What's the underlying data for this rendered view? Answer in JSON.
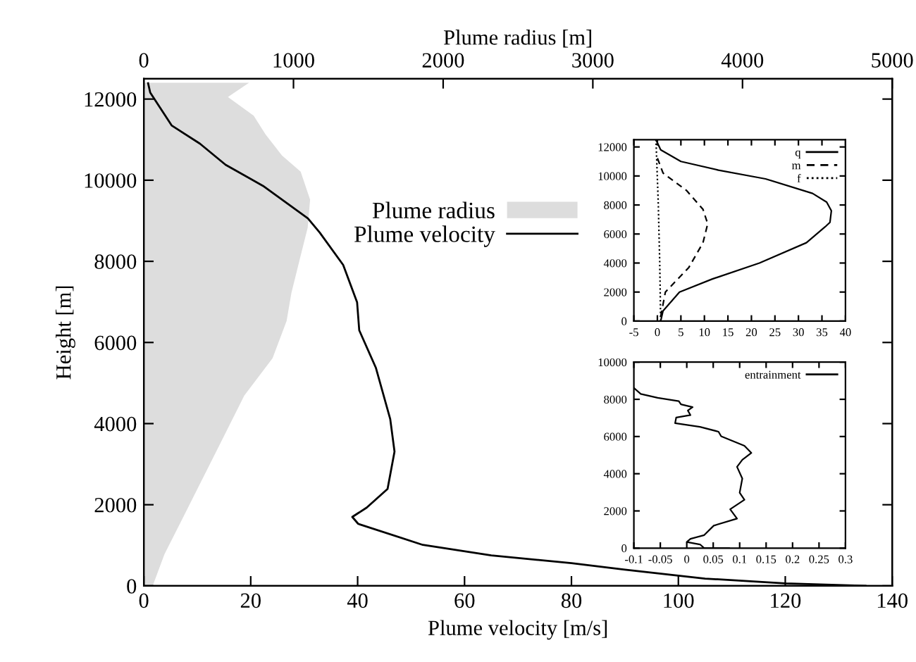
{
  "chart_data": [
    {
      "type": "line",
      "xlabel": "Plume velocity [m/s]",
      "ylabel": "Height [m]",
      "x2label": "Plume radius [m]",
      "xlim": [
        0,
        140
      ],
      "xticks": [
        0,
        20,
        40,
        60,
        80,
        100,
        120,
        140
      ],
      "x2lim": [
        0,
        5000
      ],
      "x2ticks": [
        0,
        1000,
        2000,
        3000,
        4000,
        5000
      ],
      "ylim": [
        0,
        12500
      ],
      "yticks": [
        0,
        2000,
        4000,
        6000,
        8000,
        10000,
        12000
      ],
      "grid": false,
      "legend": "top",
      "series": [
        {
          "name": "Plume radius",
          "type": "area",
          "axis": "x2",
          "color": "#dddddd",
          "x": [
            59,
            138,
            264,
            358,
            515,
            671,
            860,
            954,
            986,
            1048,
            1095,
            1111,
            1048,
            923,
            813,
            734,
            562,
            703,
            0
          ],
          "values": [
            0,
            780,
            1700,
            2390,
            3540,
            4690,
            5610,
            6530,
            7220,
            8140,
            8830,
            9520,
            10210,
            10610,
            11130,
            11590,
            12050,
            12400,
            12400
          ]
        },
        {
          "name": "Plume velocity",
          "type": "line",
          "color": "#000000",
          "x": [
            135,
            120,
            105,
            90,
            80,
            65,
            52.2,
            40.1,
            39.0,
            41.7,
            45.6,
            46.9,
            46.1,
            43.4,
            40.3,
            39.9,
            37.3,
            32.9,
            30.7,
            22.3,
            15.3,
            10.5,
            5.2,
            1.2,
            0.8
          ],
          "values": [
            0,
            60,
            180,
            400,
            560,
            750,
            1010,
            1530,
            1700,
            1930,
            2390,
            3310,
            4110,
            5380,
            6300,
            6990,
            7910,
            8710,
            9060,
            9860,
            10380,
            10900,
            11350,
            12160,
            12390
          ]
        }
      ]
    },
    {
      "type": "line",
      "xlim": [
        -5,
        40
      ],
      "xticks": [
        -5,
        0,
        5,
        10,
        15,
        20,
        25,
        30,
        35,
        40
      ],
      "ylim": [
        0,
        12500
      ],
      "yticks": [
        0,
        2000,
        4000,
        6000,
        8000,
        10000,
        12000
      ],
      "grid": false,
      "legend": "top right",
      "series": [
        {
          "name": "q",
          "color": "#000000",
          "line_style": "solid",
          "x": [
            0.7,
            1.2,
            4.7,
            11.7,
            21.7,
            31.7,
            35.7,
            36.7,
            37,
            36,
            33,
            23,
            13,
            5,
            0.7,
            -0.3
          ],
          "values": [
            0,
            700,
            2000,
            2900,
            4000,
            5400,
            6500,
            6800,
            7600,
            8200,
            8800,
            9800,
            10400,
            11000,
            11800,
            12500
          ]
        },
        {
          "name": "m",
          "color": "#000000",
          "line_style": "dashed",
          "x": [
            0.7,
            1.7,
            6.7,
            9.7,
            10.7,
            9.7,
            6.2,
            1.2,
            -0.3
          ],
          "values": [
            300,
            2000,
            3700,
            5400,
            6700,
            7700,
            9000,
            10200,
            11500
          ]
        },
        {
          "name": "f",
          "color": "#000000",
          "line_style": "dotted",
          "x": [
            0.7,
            0.5,
            0.2,
            -0.3
          ],
          "values": [
            0,
            4000,
            8000,
            12500
          ]
        }
      ]
    },
    {
      "type": "line",
      "xlim": [
        -0.1,
        0.3
      ],
      "xticks": [
        -0.1,
        -0.05,
        0,
        0.05,
        0.1,
        0.15,
        0.2,
        0.25,
        0.3
      ],
      "ylim": [
        0,
        10000
      ],
      "yticks": [
        0,
        2000,
        4000,
        6000,
        8000,
        10000
      ],
      "grid": false,
      "legend": "top right",
      "series": [
        {
          "name": "entrainment",
          "color": "#000000",
          "line_style": "solid",
          "x": [
            0.08,
            0.033,
            0.025,
            0,
            0.007,
            0.033,
            0.051,
            0.095,
            0.082,
            0.109,
            0.1,
            0.105,
            0.095,
            0.105,
            0.122,
            0.109,
            0.087,
            0.065,
            0.06,
            0.025,
            -0.022,
            -0.02,
            0.007,
            0.002,
            0.011,
            -0.011,
            -0.015,
            -0.055,
            -0.087,
            -0.1
          ],
          "values": [
            0,
            0,
            200,
            330,
            500,
            700,
            1210,
            1590,
            2090,
            2600,
            2980,
            3740,
            4370,
            4750,
            5120,
            5500,
            5760,
            6010,
            6260,
            6520,
            6720,
            7020,
            7150,
            7400,
            7580,
            7730,
            7900,
            8080,
            8290,
            8610
          ]
        }
      ]
    }
  ]
}
